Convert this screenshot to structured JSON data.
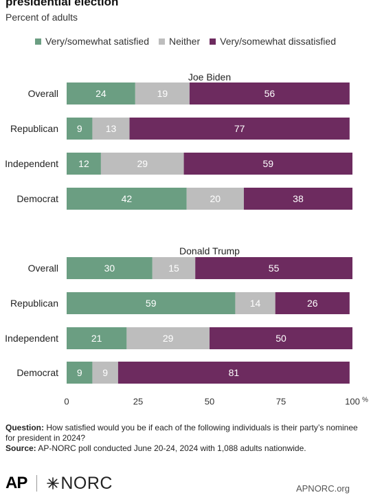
{
  "header": {
    "title": "presidential election",
    "subtitle": "Percent of adults"
  },
  "legend": [
    {
      "label": "Very/somewhat satisfied",
      "color": "#6b9e82"
    },
    {
      "label": "Neither",
      "color": "#bdbdbd"
    },
    {
      "label": "Very/somewhat dissatisfied",
      "color": "#6d2b5f"
    }
  ],
  "chart_data": {
    "type": "bar",
    "orientation": "horizontal",
    "stacked": true,
    "x_ticks": [
      "0",
      "25",
      "50",
      "75",
      "100"
    ],
    "x_unit": "%",
    "xlim": [
      0,
      100
    ],
    "grid": false,
    "legend_position": "top",
    "series_names": [
      "Very/somewhat satisfied",
      "Neither",
      "Very/somewhat dissatisfied"
    ],
    "groups": [
      {
        "title": "Joe Biden",
        "categories": [
          "Overall",
          "Republican",
          "Independent",
          "Democrat"
        ],
        "values": [
          [
            24,
            19,
            56
          ],
          [
            9,
            13,
            77
          ],
          [
            12,
            29,
            59
          ],
          [
            42,
            20,
            38
          ]
        ]
      },
      {
        "title": "Donald Trump",
        "categories": [
          "Overall",
          "Republican",
          "Independent",
          "Democrat"
        ],
        "values": [
          [
            30,
            15,
            55
          ],
          [
            59,
            14,
            26
          ],
          [
            21,
            29,
            50
          ],
          [
            9,
            9,
            81
          ]
        ]
      }
    ]
  },
  "footnote": {
    "question_label": "Question:",
    "question_text": " How satisfied would you be if each of the following individuals is their party’s nominee for president in 2024?",
    "source_label": "Source:",
    "source_text": " AP-NORC poll conducted June 20-24, 2024 with 1,088 adults nationwide."
  },
  "brand": {
    "ap": "AP",
    "norc": "NORC",
    "url": "APNORC.org"
  }
}
